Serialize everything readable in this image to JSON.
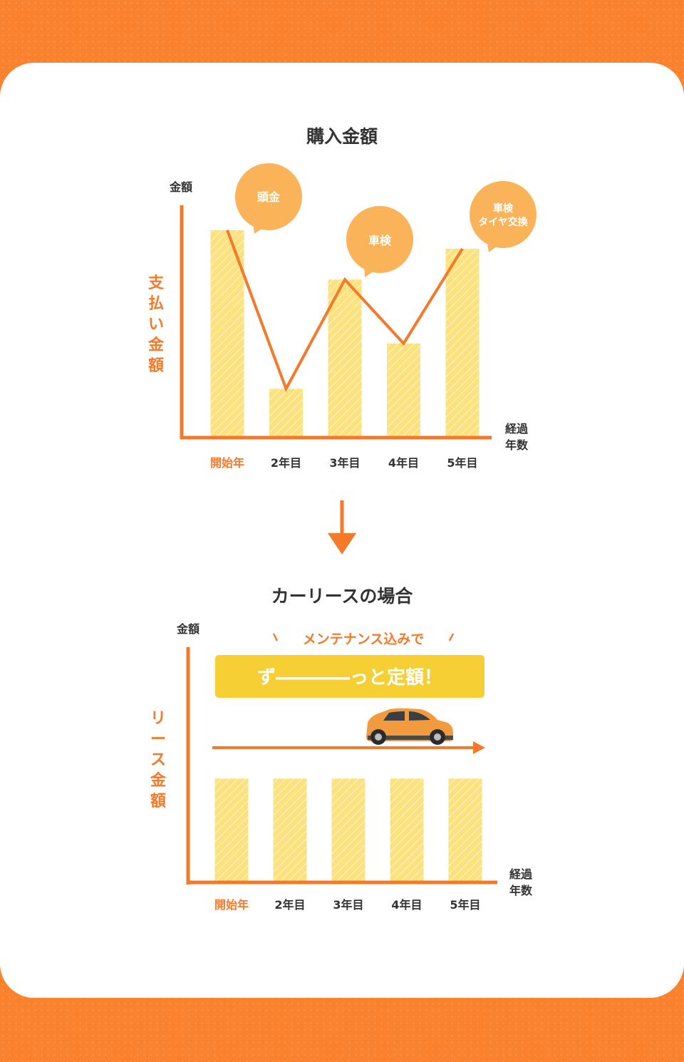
{
  "colors": {
    "background": "#FA812E",
    "accent": "#F47A2A",
    "bar": "#FBE27E",
    "bubble": "#FBB35A",
    "banner": "#F5CF33",
    "text": "#333333"
  },
  "chart_data": [
    {
      "type": "bar",
      "title": "購入金額",
      "ylabel_top": "金額",
      "ylabel_side": "支払い金額",
      "xlabel": "経過年数",
      "categories": [
        "開始年",
        "2年目",
        "3年目",
        "4年目",
        "5年目"
      ],
      "values": [
        100,
        23,
        76,
        45,
        91
      ],
      "ylim": [
        0,
        110
      ],
      "line_overlay": true,
      "annotations": [
        {
          "category": "開始年",
          "text": "頭金"
        },
        {
          "category": "3年目",
          "text": "車検"
        },
        {
          "category": "5年目",
          "text": "車検タイヤ交換"
        }
      ],
      "grid": false
    },
    {
      "type": "bar",
      "title": "カーリースの場合",
      "ylabel_top": "金額",
      "ylabel_side": "リース金額",
      "xlabel": "経過年数",
      "categories": [
        "開始年",
        "2年目",
        "3年目",
        "4年目",
        "5年目"
      ],
      "values": [
        50,
        50,
        50,
        50,
        50
      ],
      "ylim": [
        0,
        110
      ],
      "tagline": "メンテナンス込みで",
      "banner": "ずーーーーっと定額！",
      "grid": false
    }
  ],
  "labels": {
    "chart1": {
      "title": "購入金額",
      "ytop": "金額",
      "vertical": [
        "支",
        "払",
        "い",
        "金",
        "額"
      ],
      "xlabel": [
        "経過",
        "年数"
      ],
      "bubble1": "頭金",
      "bubble2": "車検",
      "bubble3_line1": "車検",
      "bubble3_line2": "タイヤ交換"
    },
    "chart2": {
      "title": "カーリースの場合",
      "ytop": "金額",
      "vertical": [
        "リ",
        "ー",
        "ス",
        "金",
        "額"
      ],
      "xlabel": [
        "経過",
        "年数"
      ],
      "tagline": "メンテナンス込みで",
      "banner": "ず――――っと定額！"
    }
  },
  "icons": {
    "down_arrow": "down-arrow-icon",
    "car": "car-icon"
  }
}
